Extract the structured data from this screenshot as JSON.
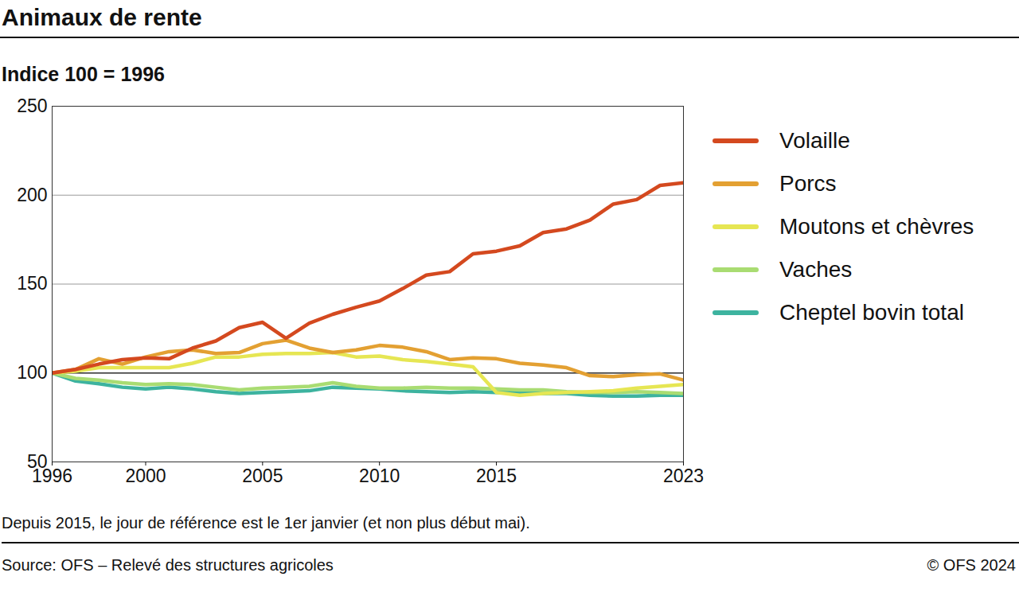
{
  "chart_data": {
    "type": "line",
    "title": "Animaux de rente",
    "subtitle": "Indice 100 = 1996",
    "note": "Depuis 2015, le jour de référence est le 1er janvier (et non plus début mai).",
    "source": "Source: OFS – Relevé des structures agricoles",
    "copyright": "© OFS 2024",
    "x": [
      1996,
      1997,
      1998,
      1999,
      2000,
      2001,
      2002,
      2003,
      2004,
      2005,
      2006,
      2007,
      2008,
      2009,
      2010,
      2011,
      2012,
      2013,
      2014,
      2015,
      2016,
      2017,
      2018,
      2019,
      2020,
      2021,
      2022,
      2023
    ],
    "xlim": [
      1996,
      2023
    ],
    "xticks": [
      1996,
      2000,
      2005,
      2010,
      2015,
      2023
    ],
    "ylim": [
      50,
      250
    ],
    "yticks": [
      50,
      100,
      150,
      200,
      250
    ],
    "grid": true,
    "legend": "right",
    "series": [
      {
        "name": "Volaille",
        "color": "#d4491f",
        "values": [
          100,
          102,
          105,
          107.5,
          108.5,
          108,
          114,
          118,
          125.5,
          128.5,
          119.5,
          128,
          133,
          137,
          140.5,
          147.5,
          155,
          157,
          167,
          168.5,
          171.5,
          179,
          181,
          186,
          195,
          197.5,
          205.5,
          207
        ]
      },
      {
        "name": "Porcs",
        "color": "#e3a032",
        "values": [
          100,
          102,
          108,
          105,
          109,
          112,
          113,
          111,
          111.5,
          116.5,
          118.5,
          114,
          111.5,
          113,
          115.5,
          114.5,
          112,
          107.5,
          108.5,
          108,
          105.5,
          104.5,
          103,
          98.5,
          98,
          99,
          99.5,
          96
        ]
      },
      {
        "name": "Moutons et chèvres",
        "color": "#e6e653",
        "values": [
          100,
          101,
          103,
          103,
          103,
          103,
          105.5,
          109,
          109,
          110.5,
          111,
          111,
          111.5,
          109,
          109.5,
          107.5,
          106.5,
          105,
          103.5,
          89,
          87.5,
          88.5,
          89,
          89.5,
          90,
          91.5,
          92.5,
          93.5
        ]
      },
      {
        "name": "Vaches",
        "color": "#a9dc72",
        "values": [
          100,
          97,
          96,
          94.5,
          93.5,
          94,
          93.5,
          92,
          90.5,
          91.5,
          92,
          92.5,
          94.5,
          92.5,
          91.5,
          91.5,
          92,
          91.5,
          91.5,
          91,
          90.5,
          90.5,
          89.5,
          89,
          89,
          89.5,
          89,
          88.5
        ]
      },
      {
        "name": "Cheptel bovin total",
        "color": "#3db39f",
        "values": [
          100,
          95.5,
          94,
          92,
          91,
          92,
          91,
          89.5,
          88.5,
          89,
          89.5,
          90,
          92,
          91.5,
          91,
          90,
          89.5,
          89,
          89.5,
          89,
          89,
          88.5,
          88.5,
          87.5,
          87,
          87,
          87.5,
          87.5
        ]
      }
    ]
  }
}
